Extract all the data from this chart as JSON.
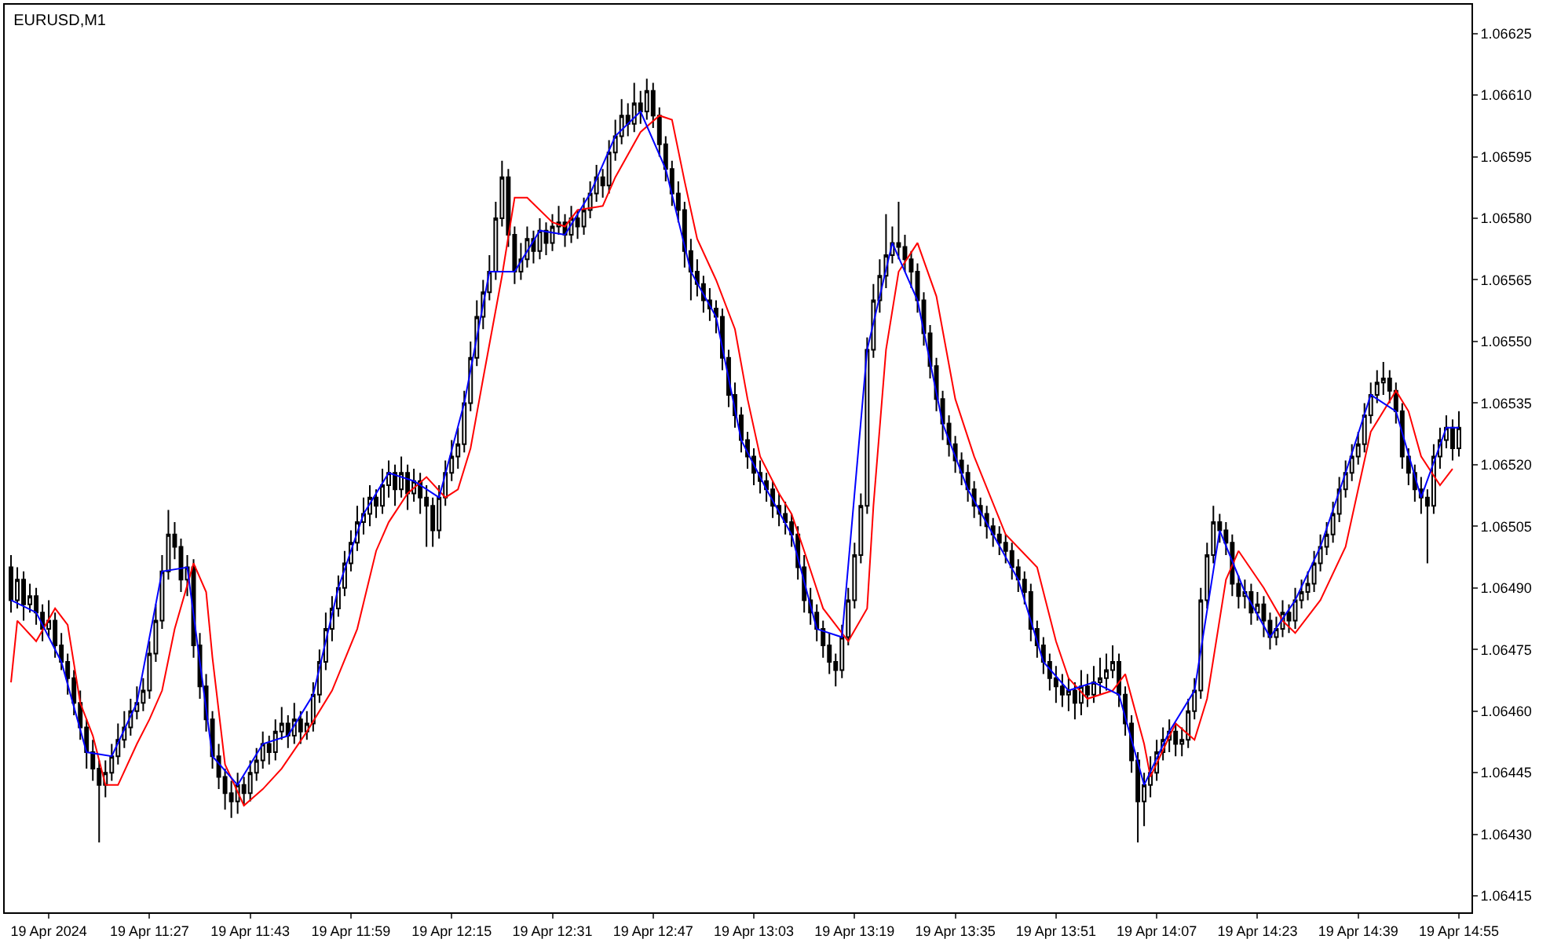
{
  "chart_data": {
    "type": "candlestick",
    "title": "EURUSD,M1",
    "x": [
      "2024-04-19T11:05",
      "2024-04-19T11:06",
      "2024-04-19T11:07",
      "2024-04-19T11:08",
      "2024-04-19T11:09",
      "2024-04-19T11:10",
      "2024-04-19T11:11",
      "2024-04-19T11:12",
      "2024-04-19T11:13",
      "2024-04-19T11:14",
      "2024-04-19T11:15",
      "2024-04-19T11:16",
      "2024-04-19T11:17",
      "2024-04-19T11:18",
      "2024-04-19T11:19",
      "2024-04-19T11:20",
      "2024-04-19T11:21",
      "2024-04-19T11:22",
      "2024-04-19T11:23",
      "2024-04-19T11:24",
      "2024-04-19T11:25",
      "2024-04-19T11:26",
      "2024-04-19T11:27",
      "2024-04-19T11:28",
      "2024-04-19T11:29",
      "2024-04-19T11:30",
      "2024-04-19T11:31",
      "2024-04-19T11:32",
      "2024-04-19T11:33",
      "2024-04-19T11:34",
      "2024-04-19T11:35",
      "2024-04-19T11:36",
      "2024-04-19T11:37",
      "2024-04-19T11:38",
      "2024-04-19T11:39",
      "2024-04-19T11:40",
      "2024-04-19T11:41",
      "2024-04-19T11:42",
      "2024-04-19T11:43",
      "2024-04-19T11:44",
      "2024-04-19T11:45",
      "2024-04-19T11:46",
      "2024-04-19T11:47",
      "2024-04-19T11:48",
      "2024-04-19T11:49",
      "2024-04-19T11:50",
      "2024-04-19T11:51",
      "2024-04-19T11:52",
      "2024-04-19T11:53",
      "2024-04-19T11:54",
      "2024-04-19T11:55",
      "2024-04-19T11:56",
      "2024-04-19T11:57",
      "2024-04-19T11:58",
      "2024-04-19T11:59",
      "2024-04-19T12:00",
      "2024-04-19T12:01",
      "2024-04-19T12:02",
      "2024-04-19T12:03",
      "2024-04-19T12:04",
      "2024-04-19T12:05",
      "2024-04-19T12:06",
      "2024-04-19T12:07",
      "2024-04-19T12:08",
      "2024-04-19T12:09",
      "2024-04-19T12:10",
      "2024-04-19T12:11",
      "2024-04-19T12:12",
      "2024-04-19T12:13",
      "2024-04-19T12:14",
      "2024-04-19T12:15",
      "2024-04-19T12:16",
      "2024-04-19T12:17",
      "2024-04-19T12:18",
      "2024-04-19T12:19",
      "2024-04-19T12:20",
      "2024-04-19T12:21",
      "2024-04-19T12:22",
      "2024-04-19T12:23",
      "2024-04-19T12:24",
      "2024-04-19T12:25",
      "2024-04-19T12:26",
      "2024-04-19T12:27",
      "2024-04-19T12:28",
      "2024-04-19T12:29",
      "2024-04-19T12:30",
      "2024-04-19T12:31",
      "2024-04-19T12:32",
      "2024-04-19T12:33",
      "2024-04-19T12:34",
      "2024-04-19T12:35",
      "2024-04-19T12:36",
      "2024-04-19T12:37",
      "2024-04-19T12:38",
      "2024-04-19T12:39",
      "2024-04-19T12:40",
      "2024-04-19T12:41",
      "2024-04-19T12:42",
      "2024-04-19T12:43",
      "2024-04-19T12:44",
      "2024-04-19T12:45",
      "2024-04-19T12:46",
      "2024-04-19T12:47",
      "2024-04-19T12:48",
      "2024-04-19T12:49",
      "2024-04-19T12:50",
      "2024-04-19T12:51",
      "2024-04-19T12:52",
      "2024-04-19T12:53",
      "2024-04-19T12:54",
      "2024-04-19T12:55",
      "2024-04-19T12:56",
      "2024-04-19T12:57",
      "2024-04-19T12:58",
      "2024-04-19T12:59",
      "2024-04-19T13:00",
      "2024-04-19T13:01",
      "2024-04-19T13:02",
      "2024-04-19T13:03",
      "2024-04-19T13:04",
      "2024-04-19T13:05",
      "2024-04-19T13:06",
      "2024-04-19T13:07",
      "2024-04-19T13:08",
      "2024-04-19T13:09",
      "2024-04-19T13:10",
      "2024-04-19T13:11",
      "2024-04-19T13:12",
      "2024-04-19T13:13",
      "2024-04-19T13:14",
      "2024-04-19T13:15",
      "2024-04-19T13:16",
      "2024-04-19T13:17",
      "2024-04-19T13:18",
      "2024-04-19T13:19",
      "2024-04-19T13:20",
      "2024-04-19T13:21",
      "2024-04-19T13:22",
      "2024-04-19T13:23",
      "2024-04-19T13:24",
      "2024-04-19T13:25",
      "2024-04-19T13:26",
      "2024-04-19T13:27",
      "2024-04-19T13:28",
      "2024-04-19T13:29",
      "2024-04-19T13:30",
      "2024-04-19T13:31",
      "2024-04-19T13:32",
      "2024-04-19T13:33",
      "2024-04-19T13:34",
      "2024-04-19T13:35",
      "2024-04-19T13:36",
      "2024-04-19T13:37",
      "2024-04-19T13:38",
      "2024-04-19T13:39",
      "2024-04-19T13:40",
      "2024-04-19T13:41",
      "2024-04-19T13:42",
      "2024-04-19T13:43",
      "2024-04-19T13:44",
      "2024-04-19T13:45",
      "2024-04-19T13:46",
      "2024-04-19T13:47",
      "2024-04-19T13:48",
      "2024-04-19T13:49",
      "2024-04-19T13:50",
      "2024-04-19T13:51",
      "2024-04-19T13:52",
      "2024-04-19T13:53",
      "2024-04-19T13:54",
      "2024-04-19T13:55",
      "2024-04-19T13:56",
      "2024-04-19T13:57",
      "2024-04-19T13:58",
      "2024-04-19T13:59",
      "2024-04-19T14:00",
      "2024-04-19T14:01",
      "2024-04-19T14:02",
      "2024-04-19T14:03",
      "2024-04-19T14:04",
      "2024-04-19T14:05",
      "2024-04-19T14:06",
      "2024-04-19T14:07",
      "2024-04-19T14:08",
      "2024-04-19T14:09",
      "2024-04-19T14:10",
      "2024-04-19T14:11",
      "2024-04-19T14:12",
      "2024-04-19T14:13",
      "2024-04-19T14:14",
      "2024-04-19T14:15",
      "2024-04-19T14:16",
      "2024-04-19T14:17",
      "2024-04-19T14:18",
      "2024-04-19T14:19",
      "2024-04-19T14:20",
      "2024-04-19T14:21",
      "2024-04-19T14:22",
      "2024-04-19T14:23",
      "2024-04-19T14:24",
      "2024-04-19T14:25",
      "2024-04-19T14:26",
      "2024-04-19T14:27",
      "2024-04-19T14:28",
      "2024-04-19T14:29",
      "2024-04-19T14:30",
      "2024-04-19T14:31",
      "2024-04-19T14:32",
      "2024-04-19T14:33",
      "2024-04-19T14:34",
      "2024-04-19T14:35",
      "2024-04-19T14:36",
      "2024-04-19T14:37",
      "2024-04-19T14:38",
      "2024-04-19T14:39",
      "2024-04-19T14:40",
      "2024-04-19T14:41",
      "2024-04-19T14:42",
      "2024-04-19T14:43",
      "2024-04-19T14:44",
      "2024-04-19T14:45",
      "2024-04-19T14:46",
      "2024-04-19T14:47",
      "2024-04-19T14:48",
      "2024-04-19T14:49",
      "2024-04-19T14:50",
      "2024-04-19T14:51",
      "2024-04-19T14:52",
      "2024-04-19T14:53",
      "2024-04-19T14:54",
      "2024-04-19T14:55"
    ],
    "ohlc": [
      [
        1.06495,
        1.06498,
        1.06484,
        1.06487
      ],
      [
        1.06487,
        1.06495,
        1.06485,
        1.06492
      ],
      [
        1.06492,
        1.06494,
        1.06482,
        1.06486
      ],
      [
        1.06486,
        1.06491,
        1.06484,
        1.06488
      ],
      [
        1.06488,
        1.0649,
        1.06481,
        1.06484
      ],
      [
        1.06484,
        1.06486,
        1.06477,
        1.0648
      ],
      [
        1.0648,
        1.06487,
        1.06478,
        1.06482
      ],
      [
        1.06482,
        1.06484,
        1.06473,
        1.06476
      ],
      [
        1.06476,
        1.06479,
        1.0647,
        1.06472
      ],
      [
        1.06472,
        1.06474,
        1.06464,
        1.06468
      ],
      [
        1.06468,
        1.0647,
        1.06459,
        1.06462
      ],
      [
        1.06462,
        1.06465,
        1.06453,
        1.06456
      ],
      [
        1.06456,
        1.06458,
        1.06446,
        1.0645
      ],
      [
        1.0645,
        1.06453,
        1.06443,
        1.06446
      ],
      [
        1.06446,
        1.06448,
        1.06428,
        1.06442
      ],
      [
        1.06442,
        1.06448,
        1.06439,
        1.06445
      ],
      [
        1.06445,
        1.06452,
        1.06443,
        1.06449
      ],
      [
        1.06449,
        1.06457,
        1.06447,
        1.06453
      ],
      [
        1.06453,
        1.0646,
        1.06451,
        1.06456
      ],
      [
        1.06456,
        1.06463,
        1.06454,
        1.0646
      ],
      [
        1.0646,
        1.06466,
        1.06458,
        1.06462
      ],
      [
        1.06462,
        1.06468,
        1.0646,
        1.06465
      ],
      [
        1.06465,
        1.06477,
        1.06463,
        1.06474
      ],
      [
        1.06474,
        1.06486,
        1.06472,
        1.06482
      ],
      [
        1.06482,
        1.06498,
        1.0648,
        1.06494
      ],
      [
        1.06494,
        1.06509,
        1.06492,
        1.06503
      ],
      [
        1.06503,
        1.06506,
        1.06497,
        1.065
      ],
      [
        1.065,
        1.06502,
        1.06489,
        1.06492
      ],
      [
        1.06492,
        1.06498,
        1.06488,
        1.06495
      ],
      [
        1.06495,
        1.06497,
        1.06473,
        1.06476
      ],
      [
        1.06476,
        1.06479,
        1.06463,
        1.06466
      ],
      [
        1.06466,
        1.06469,
        1.06455,
        1.06458
      ],
      [
        1.06458,
        1.0646,
        1.06446,
        1.06449
      ],
      [
        1.06449,
        1.06452,
        1.06441,
        1.06444
      ],
      [
        1.06444,
        1.06446,
        1.06436,
        1.0644
      ],
      [
        1.0644,
        1.06443,
        1.06434,
        1.06438
      ],
      [
        1.06438,
        1.06445,
        1.06435,
        1.06442
      ],
      [
        1.06442,
        1.06444,
        1.06437,
        1.0644
      ],
      [
        1.0644,
        1.06448,
        1.06438,
        1.06445
      ],
      [
        1.06445,
        1.06451,
        1.06443,
        1.06448
      ],
      [
        1.06448,
        1.06455,
        1.06446,
        1.06452
      ],
      [
        1.06452,
        1.06454,
        1.06447,
        1.0645
      ],
      [
        1.0645,
        1.06458,
        1.06448,
        1.06455
      ],
      [
        1.06455,
        1.06461,
        1.06453,
        1.06457
      ],
      [
        1.06457,
        1.06459,
        1.06451,
        1.06454
      ],
      [
        1.06454,
        1.06462,
        1.06452,
        1.06458
      ],
      [
        1.06458,
        1.0646,
        1.06452,
        1.06455
      ],
      [
        1.06455,
        1.0646,
        1.06453,
        1.06457
      ],
      [
        1.06457,
        1.06467,
        1.06455,
        1.06464
      ],
      [
        1.06464,
        1.06475,
        1.06462,
        1.06472
      ],
      [
        1.06472,
        1.06484,
        1.0647,
        1.0648
      ],
      [
        1.0648,
        1.06488,
        1.06477,
        1.06485
      ],
      [
        1.06485,
        1.06493,
        1.06483,
        1.0649
      ],
      [
        1.0649,
        1.06499,
        1.06488,
        1.06496
      ],
      [
        1.06496,
        1.06504,
        1.06494,
        1.06501
      ],
      [
        1.06501,
        1.0651,
        1.06499,
        1.06506
      ],
      [
        1.06506,
        1.06512,
        1.06503,
        1.06508
      ],
      [
        1.06508,
        1.06515,
        1.06505,
        1.06512
      ],
      [
        1.06512,
        1.06514,
        1.06507,
        1.0651
      ],
      [
        1.0651,
        1.06519,
        1.06508,
        1.06515
      ],
      [
        1.06515,
        1.06521,
        1.06512,
        1.06518
      ],
      [
        1.06518,
        1.0652,
        1.0651,
        1.06514
      ],
      [
        1.06514,
        1.06522,
        1.06512,
        1.06518
      ],
      [
        1.06518,
        1.0652,
        1.06509,
        1.06513
      ],
      [
        1.06513,
        1.06519,
        1.06511,
        1.06516
      ],
      [
        1.06516,
        1.06518,
        1.06508,
        1.06512
      ],
      [
        1.06512,
        1.06515,
        1.065,
        1.0651
      ],
      [
        1.0651,
        1.06512,
        1.065,
        1.06504
      ],
      [
        1.06504,
        1.06515,
        1.06502,
        1.06512
      ],
      [
        1.06512,
        1.06521,
        1.0651,
        1.06518
      ],
      [
        1.06518,
        1.06526,
        1.06516,
        1.06522
      ],
      [
        1.06522,
        1.06529,
        1.06519,
        1.06525
      ],
      [
        1.06525,
        1.06538,
        1.06523,
        1.06535
      ],
      [
        1.06535,
        1.0655,
        1.06533,
        1.06546
      ],
      [
        1.06546,
        1.0656,
        1.06544,
        1.06556
      ],
      [
        1.06556,
        1.06565,
        1.06553,
        1.06562
      ],
      [
        1.06562,
        1.06571,
        1.0656,
        1.06567
      ],
      [
        1.06567,
        1.06584,
        1.06565,
        1.0658
      ],
      [
        1.0658,
        1.06594,
        1.06578,
        1.0659
      ],
      [
        1.0659,
        1.06592,
        1.06573,
        1.06576
      ],
      [
        1.06576,
        1.06578,
        1.06564,
        1.06567
      ],
      [
        1.06567,
        1.06574,
        1.06565,
        1.0657
      ],
      [
        1.0657,
        1.06578,
        1.06568,
        1.06575
      ],
      [
        1.06575,
        1.06577,
        1.06569,
        1.06572
      ],
      [
        1.06572,
        1.0658,
        1.0657,
        1.06577
      ],
      [
        1.06577,
        1.06579,
        1.06571,
        1.06574
      ],
      [
        1.06574,
        1.06581,
        1.06572,
        1.06578
      ],
      [
        1.06578,
        1.06583,
        1.06576,
        1.06579
      ],
      [
        1.06579,
        1.06581,
        1.06573,
        1.06576
      ],
      [
        1.06576,
        1.06583,
        1.06574,
        1.0658
      ],
      [
        1.0658,
        1.06582,
        1.06575,
        1.06578
      ],
      [
        1.06578,
        1.06585,
        1.06576,
        1.06582
      ],
      [
        1.06582,
        1.06589,
        1.0658,
        1.06586
      ],
      [
        1.06586,
        1.06593,
        1.06584,
        1.0659
      ],
      [
        1.0659,
        1.06592,
        1.06585,
        1.06588
      ],
      [
        1.06588,
        1.06599,
        1.06586,
        1.06596
      ],
      [
        1.06596,
        1.06604,
        1.06594,
        1.066
      ],
      [
        1.066,
        1.06609,
        1.06598,
        1.06605
      ],
      [
        1.06605,
        1.06608,
        1.066,
        1.06603
      ],
      [
        1.06603,
        1.06613,
        1.06601,
        1.06608
      ],
      [
        1.06608,
        1.06611,
        1.06603,
        1.06606
      ],
      [
        1.06606,
        1.06614,
        1.06604,
        1.06611
      ],
      [
        1.06611,
        1.06613,
        1.06602,
        1.06605
      ],
      [
        1.06605,
        1.06607,
        1.06595,
        1.06598
      ],
      [
        1.06598,
        1.066,
        1.06589,
        1.06592
      ],
      [
        1.06592,
        1.06594,
        1.06583,
        1.06586
      ],
      [
        1.06586,
        1.06589,
        1.06579,
        1.06582
      ],
      [
        1.06582,
        1.06584,
        1.06568,
        1.06572
      ],
      [
        1.06572,
        1.06575,
        1.0656,
        1.06567
      ],
      [
        1.06567,
        1.0657,
        1.06561,
        1.06564
      ],
      [
        1.06564,
        1.06566,
        1.06557,
        1.0656
      ],
      [
        1.0656,
        1.06563,
        1.06555,
        1.06558
      ],
      [
        1.06558,
        1.0656,
        1.06552,
        1.06556
      ],
      [
        1.06556,
        1.06558,
        1.06543,
        1.06546
      ],
      [
        1.06546,
        1.06548,
        1.06534,
        1.06537
      ],
      [
        1.06537,
        1.0654,
        1.06529,
        1.06532
      ],
      [
        1.06532,
        1.06534,
        1.06523,
        1.06526
      ],
      [
        1.06526,
        1.06528,
        1.06519,
        1.06522
      ],
      [
        1.06522,
        1.06524,
        1.06515,
        1.06518
      ],
      [
        1.06518,
        1.06521,
        1.06513,
        1.06516
      ],
      [
        1.06516,
        1.06518,
        1.06511,
        1.06514
      ],
      [
        1.06514,
        1.06516,
        1.06507,
        1.0651
      ],
      [
        1.0651,
        1.06513,
        1.06505,
        1.06508
      ],
      [
        1.06508,
        1.06511,
        1.06503,
        1.06506
      ],
      [
        1.06506,
        1.06508,
        1.065,
        1.06503
      ],
      [
        1.06503,
        1.06505,
        1.06492,
        1.06495
      ],
      [
        1.06495,
        1.06498,
        1.06484,
        1.06487
      ],
      [
        1.06487,
        1.0649,
        1.06481,
        1.06484
      ],
      [
        1.06484,
        1.06486,
        1.06477,
        1.0648
      ],
      [
        1.0648,
        1.06482,
        1.06473,
        1.06476
      ],
      [
        1.06476,
        1.06479,
        1.06469,
        1.06472
      ],
      [
        1.06472,
        1.06474,
        1.06466,
        1.0647
      ],
      [
        1.0647,
        1.06481,
        1.06468,
        1.06478
      ],
      [
        1.06478,
        1.0649,
        1.06476,
        1.06487
      ],
      [
        1.06487,
        1.06501,
        1.06485,
        1.06498
      ],
      [
        1.06498,
        1.06513,
        1.06496,
        1.0651
      ],
      [
        1.0651,
        1.06551,
        1.06508,
        1.06548
      ],
      [
        1.06548,
        1.06564,
        1.06546,
        1.0656
      ],
      [
        1.0656,
        1.0657,
        1.06557,
        1.06566
      ],
      [
        1.06566,
        1.06581,
        1.06563,
        1.06571
      ],
      [
        1.06571,
        1.06578,
        1.06569,
        1.06574
      ],
      [
        1.06574,
        1.06584,
        1.0657,
        1.06573
      ],
      [
        1.06573,
        1.06576,
        1.06567,
        1.0657
      ],
      [
        1.0657,
        1.06572,
        1.06563,
        1.06567
      ],
      [
        1.06567,
        1.06569,
        1.06557,
        1.0656
      ],
      [
        1.0656,
        1.06562,
        1.06549,
        1.06552
      ],
      [
        1.06552,
        1.06554,
        1.06541,
        1.06544
      ],
      [
        1.06544,
        1.06546,
        1.06533,
        1.06536
      ],
      [
        1.06536,
        1.06538,
        1.06526,
        1.0653
      ],
      [
        1.0653,
        1.06532,
        1.06522,
        1.06525
      ],
      [
        1.06525,
        1.06527,
        1.06518,
        1.06521
      ],
      [
        1.06521,
        1.06523,
        1.06515,
        1.06518
      ],
      [
        1.06518,
        1.0652,
        1.06511,
        1.06514
      ],
      [
        1.06514,
        1.06516,
        1.06507,
        1.0651
      ],
      [
        1.0651,
        1.06512,
        1.06505,
        1.06508
      ],
      [
        1.06508,
        1.0651,
        1.06502,
        1.06505
      ],
      [
        1.06505,
        1.06507,
        1.065,
        1.06503
      ],
      [
        1.06503,
        1.06505,
        1.06498,
        1.06501
      ],
      [
        1.06501,
        1.06503,
        1.06496,
        1.06499
      ],
      [
        1.06499,
        1.06501,
        1.06492,
        1.06495
      ],
      [
        1.06495,
        1.06497,
        1.06489,
        1.06492
      ],
      [
        1.06492,
        1.06494,
        1.06486,
        1.06489
      ],
      [
        1.06489,
        1.06491,
        1.06477,
        1.0648
      ],
      [
        1.0648,
        1.06482,
        1.06473,
        1.06476
      ],
      [
        1.06476,
        1.06478,
        1.06469,
        1.06472
      ],
      [
        1.06472,
        1.06474,
        1.06465,
        1.06468
      ],
      [
        1.06468,
        1.06471,
        1.06462,
        1.06466
      ],
      [
        1.06466,
        1.06469,
        1.06461,
        1.06464
      ],
      [
        1.06464,
        1.06468,
        1.0646,
        1.06465
      ],
      [
        1.06465,
        1.06467,
        1.06458,
        1.06462
      ],
      [
        1.06462,
        1.0647,
        1.06459,
        1.06466
      ],
      [
        1.06466,
        1.06469,
        1.06461,
        1.06464
      ],
      [
        1.06464,
        1.06471,
        1.06462,
        1.06467
      ],
      [
        1.06467,
        1.06473,
        1.06464,
        1.06468
      ],
      [
        1.06468,
        1.06474,
        1.06465,
        1.0647
      ],
      [
        1.0647,
        1.06476,
        1.06468,
        1.06472
      ],
      [
        1.06472,
        1.06474,
        1.06461,
        1.06464
      ],
      [
        1.06464,
        1.06466,
        1.06454,
        1.06457
      ],
      [
        1.06457,
        1.06459,
        1.06445,
        1.06448
      ],
      [
        1.06448,
        1.0645,
        1.06428,
        1.06438
      ],
      [
        1.06438,
        1.06445,
        1.06432,
        1.06442
      ],
      [
        1.06442,
        1.06449,
        1.06439,
        1.06445
      ],
      [
        1.06445,
        1.06453,
        1.06443,
        1.0645
      ],
      [
        1.0645,
        1.06456,
        1.06448,
        1.06453
      ],
      [
        1.06453,
        1.06458,
        1.0645,
        1.06455
      ],
      [
        1.06455,
        1.06457,
        1.06449,
        1.06452
      ],
      [
        1.06452,
        1.06456,
        1.06449,
        1.06453
      ],
      [
        1.06453,
        1.06463,
        1.06451,
        1.0646
      ],
      [
        1.0646,
        1.06468,
        1.06458,
        1.06465
      ],
      [
        1.06465,
        1.0649,
        1.06463,
        1.06487
      ],
      [
        1.06487,
        1.06501,
        1.06485,
        1.06498
      ],
      [
        1.06498,
        1.0651,
        1.06496,
        1.06506
      ],
      [
        1.06506,
        1.06508,
        1.06501,
        1.06504
      ],
      [
        1.06504,
        1.06506,
        1.06498,
        1.06501
      ],
      [
        1.06501,
        1.06503,
        1.06488,
        1.06491
      ],
      [
        1.06491,
        1.06493,
        1.06485,
        1.06488
      ],
      [
        1.06488,
        1.06492,
        1.06485,
        1.06489
      ],
      [
        1.06489,
        1.06491,
        1.06481,
        1.06484
      ],
      [
        1.06484,
        1.06489,
        1.06482,
        1.06486
      ],
      [
        1.06486,
        1.06488,
        1.06478,
        1.06482
      ],
      [
        1.06482,
        1.06484,
        1.06475,
        1.06478
      ],
      [
        1.06478,
        1.06483,
        1.06476,
        1.0648
      ],
      [
        1.0648,
        1.06487,
        1.06478,
        1.06484
      ],
      [
        1.06484,
        1.06486,
        1.06479,
        1.06482
      ],
      [
        1.06482,
        1.0649,
        1.0648,
        1.06487
      ],
      [
        1.06487,
        1.06492,
        1.06485,
        1.06489
      ],
      [
        1.06489,
        1.06494,
        1.06487,
        1.06491
      ],
      [
        1.06491,
        1.06499,
        1.06489,
        1.06496
      ],
      [
        1.06496,
        1.06503,
        1.06494,
        1.065
      ],
      [
        1.065,
        1.06506,
        1.06498,
        1.06503
      ],
      [
        1.06503,
        1.06511,
        1.06501,
        1.06508
      ],
      [
        1.06508,
        1.06517,
        1.06506,
        1.06514
      ],
      [
        1.06514,
        1.06521,
        1.06512,
        1.06518
      ],
      [
        1.06518,
        1.06525,
        1.06516,
        1.06522
      ],
      [
        1.06522,
        1.06528,
        1.0652,
        1.06525
      ],
      [
        1.06525,
        1.06535,
        1.06523,
        1.06532
      ],
      [
        1.06532,
        1.0654,
        1.0653,
        1.06537
      ],
      [
        1.06537,
        1.06543,
        1.06535,
        1.0654
      ],
      [
        1.0654,
        1.06545,
        1.06537,
        1.06541
      ],
      [
        1.06541,
        1.06543,
        1.06535,
        1.06538
      ],
      [
        1.06538,
        1.0654,
        1.0653,
        1.06533
      ],
      [
        1.06533,
        1.06535,
        1.06519,
        1.06522
      ],
      [
        1.06522,
        1.06524,
        1.06515,
        1.06518
      ],
      [
        1.06518,
        1.0652,
        1.06511,
        1.06514
      ],
      [
        1.06514,
        1.06517,
        1.06508,
        1.06512
      ],
      [
        1.06512,
        1.06514,
        1.06496,
        1.0651
      ],
      [
        1.0651,
        1.06525,
        1.06508,
        1.06522
      ],
      [
        1.06522,
        1.06529,
        1.06519,
        1.06526
      ],
      [
        1.06526,
        1.06532,
        1.06524,
        1.06529
      ],
      [
        1.06529,
        1.06531,
        1.06521,
        1.06524
      ],
      [
        1.06524,
        1.06533,
        1.06522,
        1.06529
      ]
    ],
    "series": [
      {
        "type": "line",
        "color": "#ff0000",
        "x": [
          "2024-04-19T11:05",
          "2024-04-19T11:06",
          "2024-04-19T11:09",
          "2024-04-19T11:12",
          "2024-04-19T11:14",
          "2024-04-19T11:16",
          "2024-04-19T11:18",
          "2024-04-19T11:20",
          "2024-04-19T11:22",
          "2024-04-19T11:25",
          "2024-04-19T11:27",
          "2024-04-19T11:29",
          "2024-04-19T11:31",
          "2024-04-19T11:34",
          "2024-04-19T11:36",
          "2024-04-19T11:37",
          "2024-04-19T11:39",
          "2024-04-19T11:42",
          "2024-04-19T11:45",
          "2024-04-19T11:48",
          "2024-04-19T11:52",
          "2024-04-19T11:56",
          "2024-04-19T12:00",
          "2024-04-19T12:03",
          "2024-04-19T12:05",
          "2024-04-19T12:08",
          "2024-04-19T12:11",
          "2024-04-19T12:14",
          "2024-04-19T12:16",
          "2024-04-19T12:18",
          "2024-04-19T12:20",
          "2024-04-19T12:23",
          "2024-04-19T12:25",
          "2024-04-19T12:27",
          "2024-04-19T12:31",
          "2024-04-19T12:33",
          "2024-04-19T12:35",
          "2024-04-19T12:39",
          "2024-04-19T12:41",
          "2024-04-19T12:45",
          "2024-04-19T12:48",
          "2024-04-19T12:50",
          "2024-04-19T12:52",
          "2024-04-19T12:54",
          "2024-04-19T12:57",
          "2024-04-19T13:00",
          "2024-04-19T13:02",
          "2024-04-19T13:04",
          "2024-04-19T13:07",
          "2024-04-19T13:09",
          "2024-04-19T13:11",
          "2024-04-19T13:14",
          "2024-04-19T13:18",
          "2024-04-19T13:21",
          "2024-04-19T13:22",
          "2024-04-19T13:24",
          "2024-04-19T13:26",
          "2024-04-19T13:29",
          "2024-04-19T13:32",
          "2024-04-19T13:35",
          "2024-04-19T13:38",
          "2024-04-19T13:43",
          "2024-04-19T13:48",
          "2024-04-19T13:51",
          "2024-04-19T13:53",
          "2024-04-19T13:56",
          "2024-04-19T14:00",
          "2024-04-19T14:02",
          "2024-04-19T14:05",
          "2024-04-19T14:06",
          "2024-04-19T14:10",
          "2024-04-19T14:13",
          "2024-04-19T14:15",
          "2024-04-19T14:18",
          "2024-04-19T14:20",
          "2024-04-19T14:24",
          "2024-04-19T14:27",
          "2024-04-19T14:29",
          "2024-04-19T14:33",
          "2024-04-19T14:37",
          "2024-04-19T14:41",
          "2024-04-19T14:45",
          "2024-04-19T14:47",
          "2024-04-19T14:49",
          "2024-04-19T14:52",
          "2024-04-19T14:54"
        ],
        "values": [
          1.06467,
          1.06482,
          1.06477,
          1.06485,
          1.06481,
          1.06462,
          1.06454,
          1.06442,
          1.06442,
          1.06452,
          1.06458,
          1.06465,
          1.0648,
          1.06496,
          1.06489,
          1.06473,
          1.06447,
          1.06437,
          1.06441,
          1.06446,
          1.06455,
          1.06465,
          1.0648,
          1.06499,
          1.06506,
          1.06513,
          1.06517,
          1.06512,
          1.06514,
          1.06524,
          1.06541,
          1.06566,
          1.06585,
          1.06585,
          1.06579,
          1.06578,
          1.06582,
          1.06583,
          1.0659,
          1.06601,
          1.06605,
          1.06604,
          1.06589,
          1.06575,
          1.06565,
          1.06553,
          1.06536,
          1.06522,
          1.06513,
          1.06508,
          1.06499,
          1.06485,
          1.06477,
          1.06485,
          1.0651,
          1.06548,
          1.06567,
          1.06574,
          1.06561,
          1.06536,
          1.06522,
          1.06503,
          1.06495,
          1.06477,
          1.06468,
          1.06463,
          1.06465,
          1.06469,
          1.06452,
          1.06444,
          1.06457,
          1.06453,
          1.06463,
          1.06492,
          1.06499,
          1.0649,
          1.06482,
          1.06479,
          1.06487,
          1.065,
          1.06528,
          1.06538,
          1.06533,
          1.06522,
          1.06515,
          1.06519
        ]
      },
      {
        "type": "line",
        "color": "#0000ff",
        "x": [
          "2024-04-19T11:05",
          "2024-04-19T11:09",
          "2024-04-19T11:13",
          "2024-04-19T11:17",
          "2024-04-19T11:21",
          "2024-04-19T11:25",
          "2024-04-19T11:29",
          "2024-04-19T11:33",
          "2024-04-19T11:37",
          "2024-04-19T11:41",
          "2024-04-19T11:45",
          "2024-04-19T11:49",
          "2024-04-19T11:53",
          "2024-04-19T11:57",
          "2024-04-19T12:01",
          "2024-04-19T12:05",
          "2024-04-19T12:09",
          "2024-04-19T12:13",
          "2024-04-19T12:17",
          "2024-04-19T12:21",
          "2024-04-19T12:25",
          "2024-04-19T12:29",
          "2024-04-19T12:33",
          "2024-04-19T12:37",
          "2024-04-19T12:41",
          "2024-04-19T12:45",
          "2024-04-19T12:49",
          "2024-04-19T12:53",
          "2024-04-19T12:57",
          "2024-04-19T13:01",
          "2024-04-19T13:05",
          "2024-04-19T13:09",
          "2024-04-19T13:13",
          "2024-04-19T13:17",
          "2024-04-19T13:21",
          "2024-04-19T13:25",
          "2024-04-19T13:29",
          "2024-04-19T13:33",
          "2024-04-19T13:37",
          "2024-04-19T13:41",
          "2024-04-19T13:45",
          "2024-04-19T13:49",
          "2024-04-19T13:53",
          "2024-04-19T13:57",
          "2024-04-19T14:01",
          "2024-04-19T14:05",
          "2024-04-19T14:09",
          "2024-04-19T14:13",
          "2024-04-19T14:17",
          "2024-04-19T14:21",
          "2024-04-19T14:25",
          "2024-04-19T14:29",
          "2024-04-19T14:33",
          "2024-04-19T14:37",
          "2024-04-19T14:41",
          "2024-04-19T14:45",
          "2024-04-19T14:49",
          "2024-04-19T14:53",
          "2024-04-19T14:55"
        ],
        "values": [
          1.06487,
          1.06484,
          1.06472,
          1.0645,
          1.06449,
          1.06462,
          1.06494,
          1.06495,
          1.06449,
          1.06442,
          1.06452,
          1.06454,
          1.06464,
          1.0649,
          1.06508,
          1.06518,
          1.06516,
          1.06512,
          1.06535,
          1.06567,
          1.06567,
          1.06577,
          1.06576,
          1.06586,
          1.066,
          1.06606,
          1.06592,
          1.06567,
          1.06556,
          1.06526,
          1.06514,
          1.06503,
          1.0648,
          1.06478,
          1.06548,
          1.06574,
          1.0656,
          1.0653,
          1.06514,
          1.06503,
          1.06492,
          1.06472,
          1.06465,
          1.06467,
          1.06464,
          1.06442,
          1.06455,
          1.06465,
          1.06504,
          1.06489,
          1.06478,
          1.06487,
          1.065,
          1.06518,
          1.06537,
          1.06533,
          1.06512,
          1.06529,
          1.06529
        ]
      }
    ],
    "xlim": [
      "2024-04-19T11:04",
      "2024-04-19T14:57"
    ],
    "xticks": [
      {
        "value": "2024-04-19T11:11",
        "label": "19 Apr 2024"
      },
      {
        "value": "2024-04-19T11:27",
        "label": "19 Apr 11:27"
      },
      {
        "value": "2024-04-19T11:43",
        "label": "19 Apr 11:43"
      },
      {
        "value": "2024-04-19T11:59",
        "label": "19 Apr 11:59"
      },
      {
        "value": "2024-04-19T12:15",
        "label": "19 Apr 12:15"
      },
      {
        "value": "2024-04-19T12:31",
        "label": "19 Apr 12:31"
      },
      {
        "value": "2024-04-19T12:47",
        "label": "19 Apr 12:47"
      },
      {
        "value": "2024-04-19T13:03",
        "label": "19 Apr 13:03"
      },
      {
        "value": "2024-04-19T13:19",
        "label": "19 Apr 13:19"
      },
      {
        "value": "2024-04-19T13:35",
        "label": "19 Apr 13:35"
      },
      {
        "value": "2024-04-19T13:51",
        "label": "19 Apr 13:51"
      },
      {
        "value": "2024-04-19T14:07",
        "label": "19 Apr 14:07"
      },
      {
        "value": "2024-04-19T14:23",
        "label": "19 Apr 14:23"
      },
      {
        "value": "2024-04-19T14:39",
        "label": "19 Apr 14:39"
      },
      {
        "value": "2024-04-19T14:55",
        "label": "19 Apr 14:55"
      }
    ],
    "ylim": [
      1.06411,
      1.06632
    ],
    "yticks": [
      1.06415,
      {
        "value": 1.0643,
        "label": "1.06430"
      },
      1.06445,
      {
        "value": 1.0646,
        "label": "1.06460"
      },
      1.06475,
      {
        "value": 1.0649,
        "label": "1.06490"
      },
      1.06505,
      {
        "value": 1.0652,
        "label": "1.06520"
      },
      1.06535,
      {
        "value": 1.0655,
        "label": "1.06550"
      },
      1.06565,
      {
        "value": 1.0658,
        "label": "1.06580"
      },
      1.06595,
      {
        "value": 1.0661,
        "label": "1.06610"
      },
      1.06625
    ]
  }
}
